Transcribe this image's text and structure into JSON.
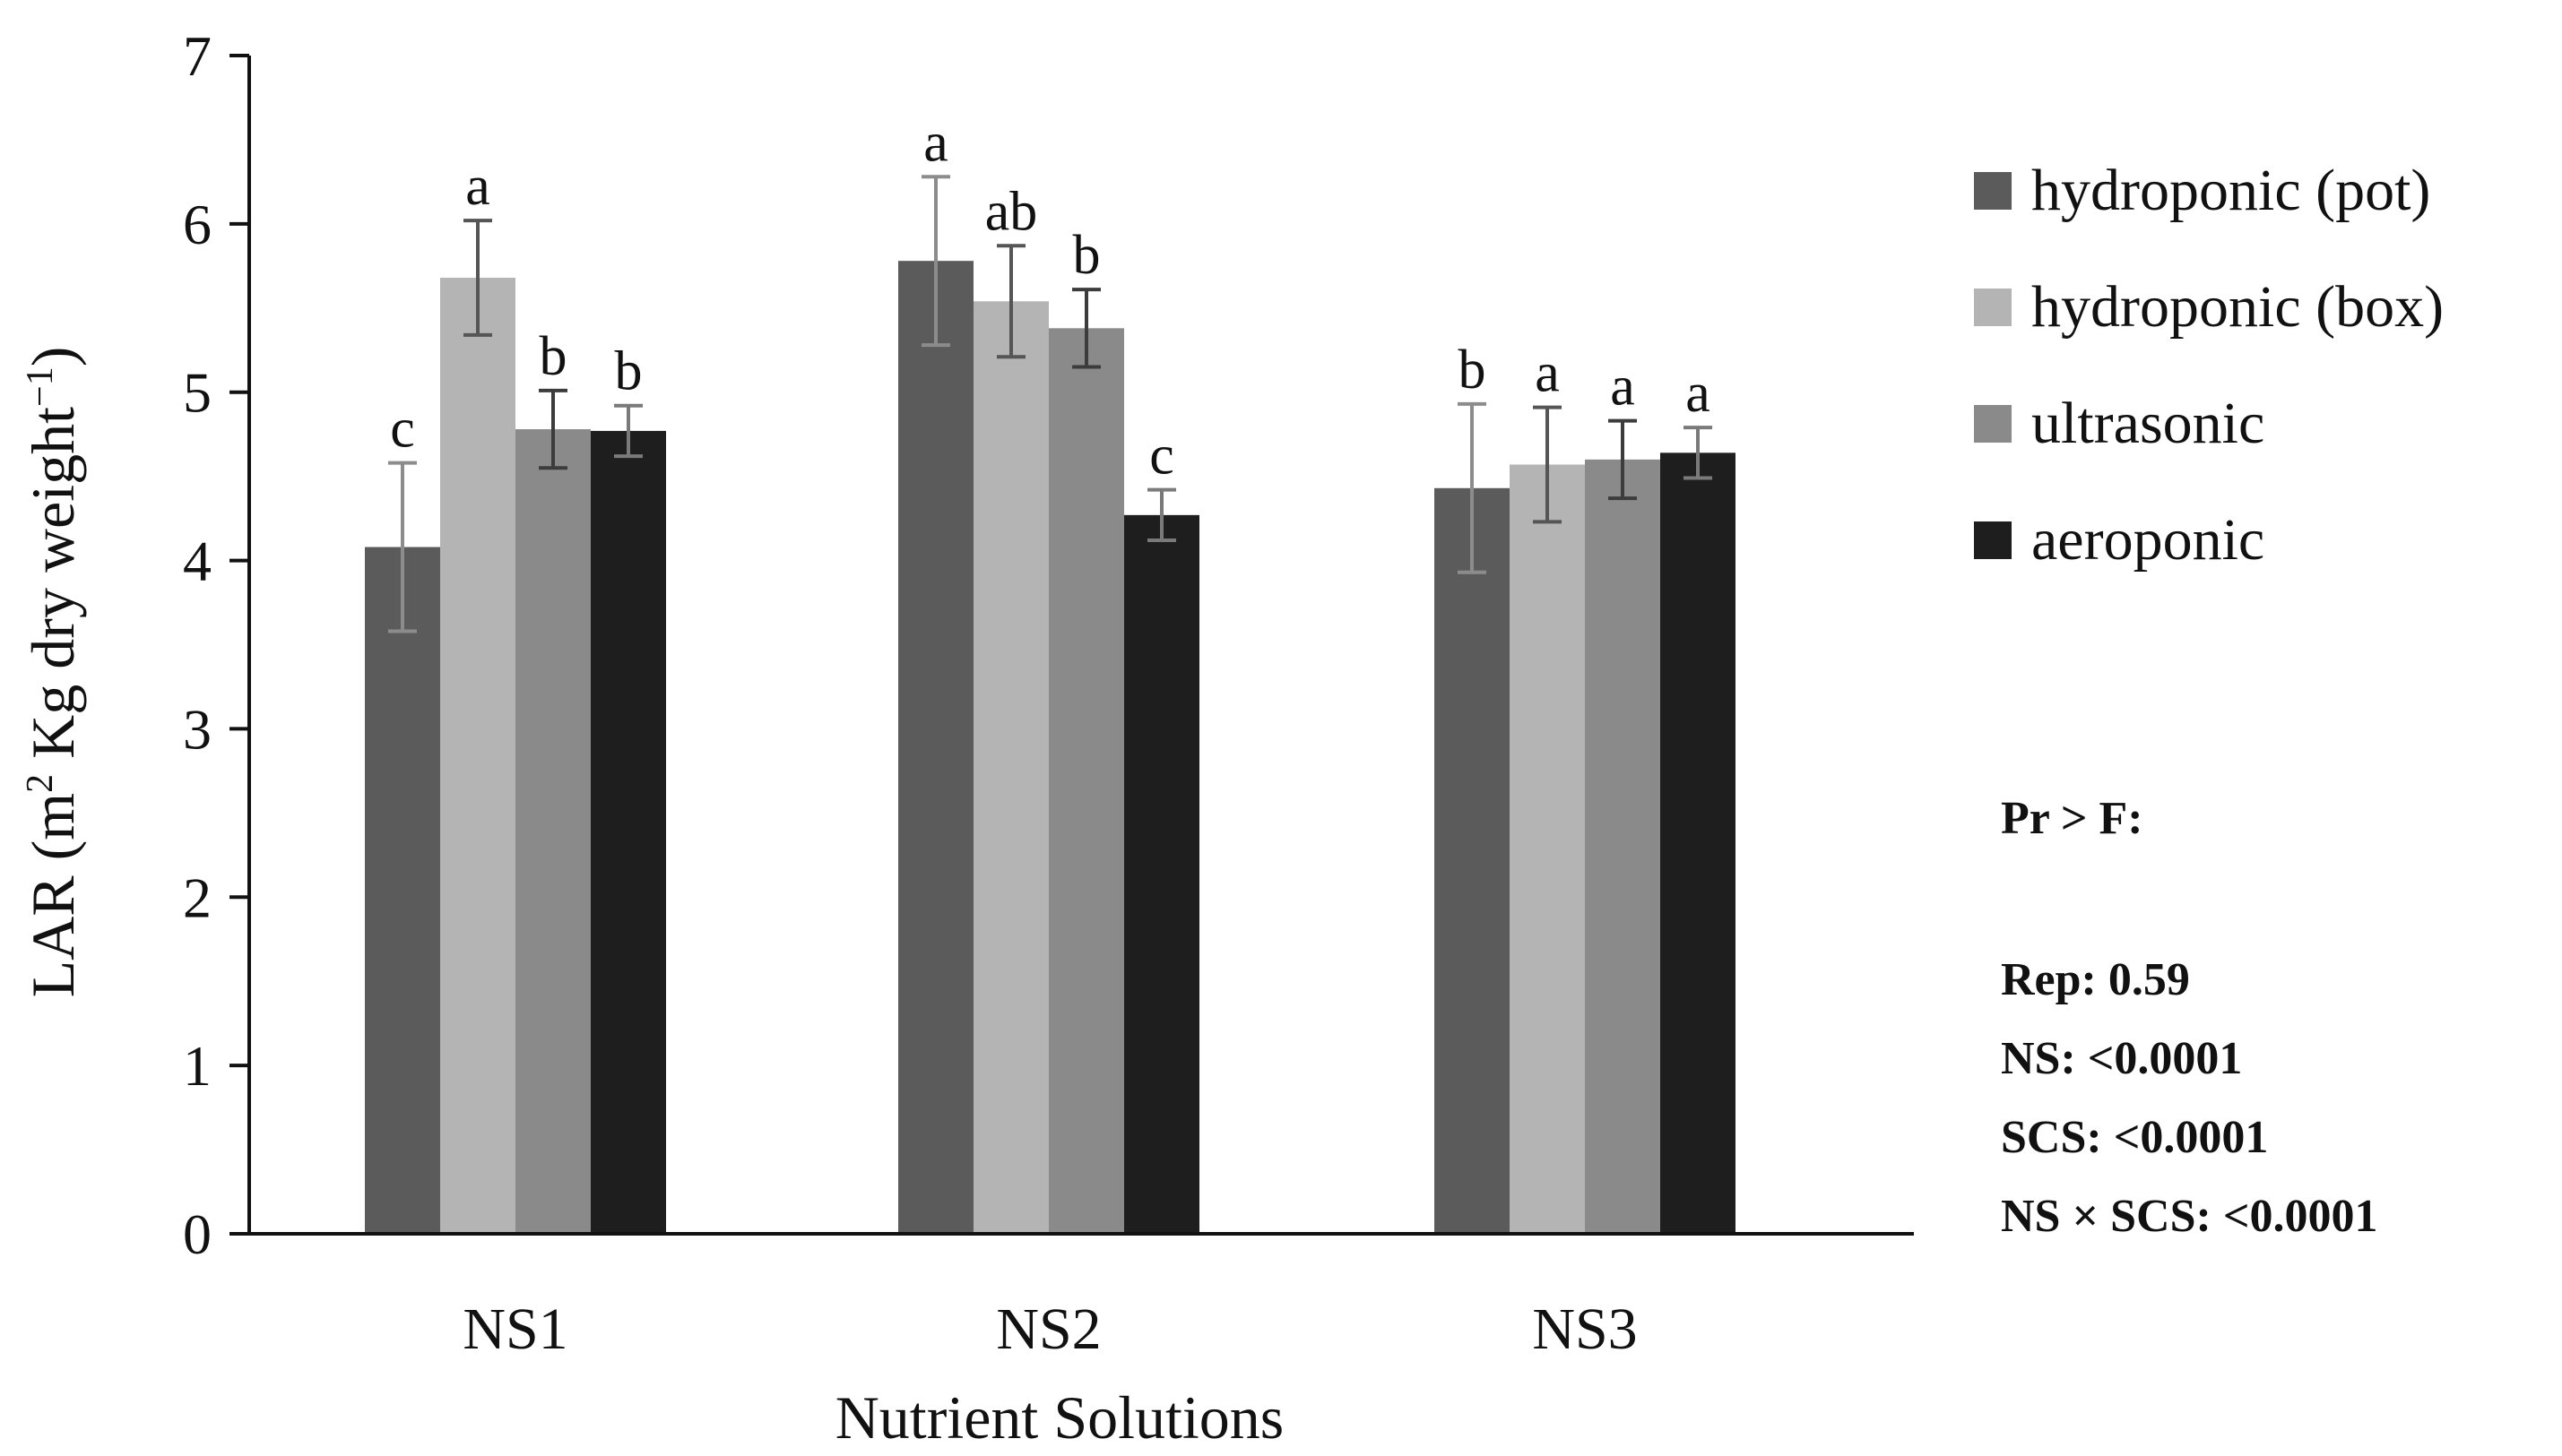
{
  "chart_data": {
    "type": "bar",
    "title": "",
    "xlabel": "Nutrient Solutions",
    "ylabel": {
      "prefix": "LAR (m",
      "sup1": "2",
      "middle": " Kg dry weight",
      "sup2": "−1",
      "suffix": ")"
    },
    "ylim": [
      0,
      7
    ],
    "yticks": [
      "0",
      "1",
      "2",
      "3",
      "4",
      "5",
      "6",
      "7"
    ],
    "categories": [
      "NS1",
      "NS2",
      "NS3"
    ],
    "series": [
      {
        "name": "hydroponic (pot)",
        "color": "#5b5b5b",
        "err_color": "#8c8c8c",
        "values": [
          4.08,
          5.78,
          4.43
        ],
        "errors": [
          0.5,
          0.5,
          0.5
        ],
        "letters": [
          "c",
          "a",
          "b"
        ]
      },
      {
        "name": "hydroponic (box)",
        "color": "#b4b4b4",
        "err_color": "#555555",
        "values": [
          5.68,
          5.54,
          4.57
        ],
        "errors": [
          0.34,
          0.33,
          0.34
        ],
        "letters": [
          "a",
          "ab",
          "a"
        ]
      },
      {
        "name": "ultrasonic",
        "color": "#8a8a8a",
        "err_color": "#3c3c3c",
        "values": [
          4.78,
          5.38,
          4.6
        ],
        "errors": [
          0.23,
          0.23,
          0.23
        ],
        "letters": [
          "b",
          "b",
          "a"
        ]
      },
      {
        "name": "aeroponic",
        "color": "#1e1e1e",
        "err_color": "#7a7a7a",
        "values": [
          4.77,
          4.27,
          4.64
        ],
        "errors": [
          0.15,
          0.15,
          0.15
        ],
        "letters": [
          "b",
          "c",
          "a"
        ]
      }
    ],
    "legend_position": "right",
    "stats": {
      "heading": "Pr > F:",
      "lines": [
        "Rep: 0.59",
        "NS: <0.0001",
        "SCS: <0.0001",
        "NS × SCS: <0.0001"
      ]
    }
  }
}
